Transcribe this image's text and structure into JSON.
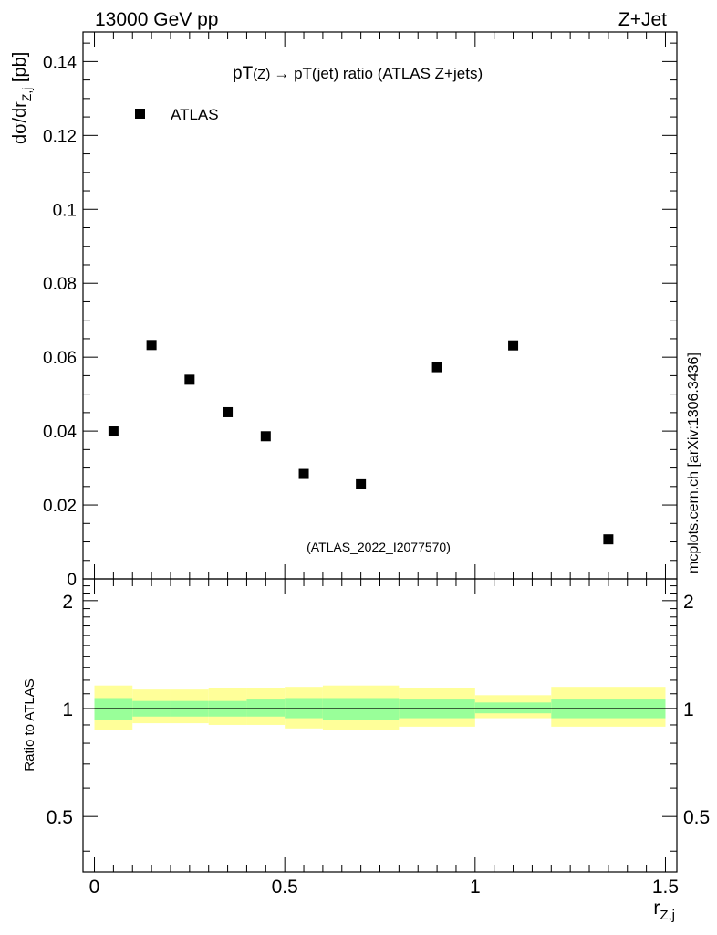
{
  "header": {
    "left": "13000 GeV pp",
    "right": "Z+Jet"
  },
  "side_label": "mcplots.cern.ch [arXiv:1306.3436]",
  "chart_data": {
    "type": "scatter",
    "title_main": "pT",
    "title_sub1": "(Z)",
    "title_arrow": "→",
    "title_rest": " pT(jet) ratio (ATLAS Z+jets)",
    "watermark": "(ATLAS_2022_I2077570)",
    "ylabel_main": "dσ/dr",
    "ylabel_sub": "Z,j",
    "ylabel_unit": " [pb]",
    "xlabel_main": "r",
    "xlabel_sub": "Z,j",
    "xlim": [
      -0.03,
      1.53
    ],
    "ylim": [
      0,
      0.148
    ],
    "x_ticks": [
      0,
      0.5,
      1,
      1.5
    ],
    "x_tick_labels": [
      "0",
      "0.5",
      "1",
      "1.5"
    ],
    "y_ticks": [
      0,
      0.02,
      0.04,
      0.06,
      0.08,
      0.1,
      0.12,
      0.14
    ],
    "y_tick_labels": [
      "0",
      "0.02",
      "0.04",
      "0.06",
      "0.08",
      "0.1",
      "0.12",
      "0.14"
    ],
    "legend": {
      "label": "ATLAS",
      "placement": "top-left"
    },
    "series": [
      {
        "name": "ATLAS",
        "color": "#000000",
        "x": [
          0.05,
          0.15,
          0.25,
          0.35,
          0.45,
          0.55,
          0.7,
          0.9,
          1.1,
          1.35
        ],
        "y": [
          0.0399,
          0.0633,
          0.0539,
          0.0451,
          0.0386,
          0.0284,
          0.0256,
          0.0573,
          0.0632,
          0.0107
        ]
      }
    ],
    "ratio": {
      "ylabel": "Ratio to ATLAS",
      "ylim": [
        0.35,
        2.3
      ],
      "y_ticks": [
        0.5,
        1,
        2
      ],
      "y_tick_labels": [
        "0.5",
        "1",
        "2"
      ],
      "reference": 1,
      "bins": [
        {
          "lo": 0.0,
          "hi": 0.1,
          "inner": [
            0.93,
            1.07
          ],
          "outer": [
            0.87,
            1.16
          ]
        },
        {
          "lo": 0.1,
          "hi": 0.2,
          "inner": [
            0.95,
            1.05
          ],
          "outer": [
            0.91,
            1.13
          ]
        },
        {
          "lo": 0.2,
          "hi": 0.3,
          "inner": [
            0.95,
            1.05
          ],
          "outer": [
            0.91,
            1.13
          ]
        },
        {
          "lo": 0.3,
          "hi": 0.4,
          "inner": [
            0.95,
            1.05
          ],
          "outer": [
            0.9,
            1.14
          ]
        },
        {
          "lo": 0.4,
          "hi": 0.5,
          "inner": [
            0.95,
            1.06
          ],
          "outer": [
            0.9,
            1.14
          ]
        },
        {
          "lo": 0.5,
          "hi": 0.6,
          "inner": [
            0.94,
            1.07
          ],
          "outer": [
            0.88,
            1.15
          ]
        },
        {
          "lo": 0.6,
          "hi": 0.8,
          "inner": [
            0.93,
            1.07
          ],
          "outer": [
            0.87,
            1.16
          ]
        },
        {
          "lo": 0.8,
          "hi": 1.0,
          "inner": [
            0.94,
            1.06
          ],
          "outer": [
            0.89,
            1.14
          ]
        },
        {
          "lo": 1.0,
          "hi": 1.2,
          "inner": [
            0.97,
            1.04
          ],
          "outer": [
            0.94,
            1.09
          ]
        },
        {
          "lo": 1.2,
          "hi": 1.5,
          "inner": [
            0.94,
            1.06
          ],
          "outer": [
            0.89,
            1.15
          ]
        }
      ],
      "inner_color": "#99ff99",
      "outer_color": "#ffff99"
    }
  }
}
